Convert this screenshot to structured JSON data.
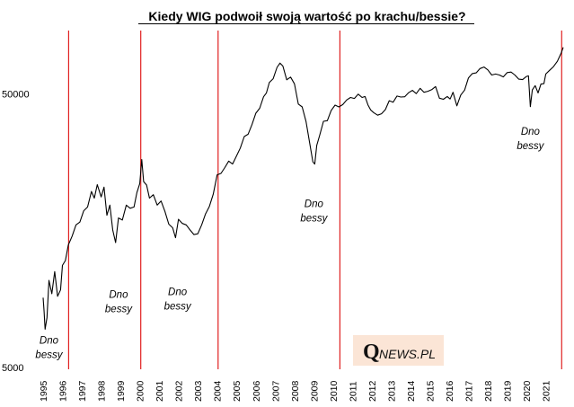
{
  "chart_data": {
    "type": "line",
    "title": "Kiedy WIG podwoił swoją wartość po krachu/bessie?",
    "xlabel": "",
    "ylabel": "",
    "y_scale": "log",
    "ylim": [
      5000,
      80000
    ],
    "y_ticks": [
      "50000",
      "5000"
    ],
    "x_ticks": [
      "1995",
      "1996",
      "1997",
      "1998",
      "1999",
      "2000",
      "2001",
      "2002",
      "2003",
      "2004",
      "2005",
      "2006",
      "2007",
      "2008",
      "2009",
      "2010",
      "2011",
      "2012",
      "2013",
      "2014",
      "2015",
      "2016",
      "2017",
      "2018",
      "2019",
      "2020",
      "2021"
    ],
    "xlim": [
      1995.0,
      2021.9
    ],
    "grid": false,
    "legend": "none",
    "line_color": "#000000",
    "marker_line_color": "#e02020",
    "series": [
      {
        "x": [
          1995.0,
          1995.05,
          1995.1,
          1995.2,
          1995.3,
          1995.45,
          1995.6,
          1995.75,
          1995.9,
          1996.0,
          1996.15,
          1996.3,
          1996.5,
          1996.7,
          1996.9,
          1997.1,
          1997.3,
          1997.5,
          1997.65,
          1997.8,
          1998.0,
          1998.15,
          1998.3,
          1998.45,
          1998.6,
          1998.75,
          1998.9,
          1999.1,
          1999.3,
          1999.5,
          1999.7,
          1999.85,
          2000.0,
          2000.1,
          2000.2,
          2000.35,
          2000.5,
          2000.7,
          2000.9,
          2001.1,
          2001.3,
          2001.5,
          2001.7,
          2001.85,
          2002.0,
          2002.2,
          2002.4,
          2002.6,
          2002.8,
          2003.0,
          2003.2,
          2003.4,
          2003.6,
          2003.8,
          2004.0,
          2004.2,
          2004.4,
          2004.6,
          2004.8,
          2005.0,
          2005.2,
          2005.4,
          2005.6,
          2005.8,
          2006.0,
          2006.2,
          2006.4,
          2006.55,
          2006.7,
          2006.9,
          2007.1,
          2007.25,
          2007.4,
          2007.6,
          2007.8,
          2008.0,
          2008.2,
          2008.4,
          2008.6,
          2008.8,
          2008.95,
          2009.05,
          2009.15,
          2009.3,
          2009.5,
          2009.7,
          2009.9,
          2010.1,
          2010.3,
          2010.5,
          2010.7,
          2010.9,
          2011.1,
          2011.3,
          2011.5,
          2011.65,
          2011.8,
          2011.95,
          2012.1,
          2012.3,
          2012.5,
          2012.7,
          2012.9,
          2013.1,
          2013.3,
          2013.5,
          2013.7,
          2013.9,
          2014.1,
          2014.3,
          2014.5,
          2014.7,
          2014.9,
          2015.1,
          2015.3,
          2015.5,
          2015.7,
          2015.9,
          2016.05,
          2016.2,
          2016.4,
          2016.6,
          2016.8,
          2017.0,
          2017.2,
          2017.4,
          2017.6,
          2017.8,
          2018.0,
          2018.2,
          2018.4,
          2018.6,
          2018.8,
          2019.0,
          2019.2,
          2019.4,
          2019.6,
          2019.8,
          2020.0,
          2020.1,
          2020.2,
          2020.3,
          2020.45,
          2020.6,
          2020.75,
          2020.9,
          2021.0,
          2021.2,
          2021.4,
          2021.6,
          2021.8,
          2021.9
        ],
        "y": [
          9000,
          8000,
          6900,
          7600,
          10400,
          9300,
          11200,
          9100,
          9600,
          11800,
          12300,
          14000,
          15100,
          16600,
          17000,
          18700,
          19300,
          22000,
          20800,
          23300,
          21000,
          22800,
          18000,
          19600,
          15900,
          14300,
          17600,
          17300,
          19600,
          19100,
          19300,
          21800,
          23500,
          28800,
          23900,
          23200,
          20800,
          21400,
          19600,
          20300,
          18600,
          16700,
          16200,
          14900,
          17400,
          16800,
          16600,
          15900,
          15300,
          15400,
          16600,
          18200,
          19400,
          21500,
          25300,
          25600,
          26900,
          28400,
          27700,
          29600,
          31700,
          34900,
          35600,
          38600,
          42500,
          44300,
          48800,
          50400,
          55000,
          56800,
          62500,
          64800,
          63200,
          56300,
          57600,
          54400,
          45900,
          44800,
          39600,
          32700,
          28200,
          27700,
          32400,
          35200,
          39700,
          39900,
          43500,
          45500,
          44800,
          45700,
          47500,
          48500,
          48100,
          49900,
          48500,
          48900,
          45600,
          43600,
          42700,
          41800,
          42300,
          43800,
          47200,
          46600,
          49100,
          48700,
          48800,
          50500,
          51500,
          50100,
          52400,
          50700,
          51100,
          51800,
          53200,
          48200,
          47800,
          48900,
          47900,
          50700,
          45200,
          49500,
          51600,
          57200,
          59300,
          59700,
          61900,
          62700,
          61200,
          58600,
          59100,
          58600,
          57700,
          59800,
          60100,
          58600,
          56600,
          56400,
          57900,
          58200,
          44900,
          51700,
          53600,
          50400,
          54300,
          54500,
          59100,
          61000,
          62900,
          65800,
          70600,
          74000
        ]
      }
    ],
    "vertical_lines_x": [
      1996.32,
      2000.05,
      2004.05,
      2010.35,
      2021.82
    ],
    "annotations": [
      {
        "text": [
          "Dno",
          "bessy"
        ],
        "x": 1995.3,
        "y": 6100
      },
      {
        "text": [
          "Dno",
          "bessy"
        ],
        "x": 1998.9,
        "y": 9000
      },
      {
        "text": [
          "Dno",
          "bessy"
        ],
        "x": 2001.95,
        "y": 9200
      },
      {
        "text": [
          "Dno",
          "bessy"
        ],
        "x": 2009.0,
        "y": 19300
      },
      {
        "text": [
          "Dno",
          "bessy"
        ],
        "x": 2020.2,
        "y": 35400
      }
    ]
  },
  "logo": {
    "q_letter": "Q",
    "rest": "NEWS.PL",
    "background": "#fbe5d6"
  }
}
